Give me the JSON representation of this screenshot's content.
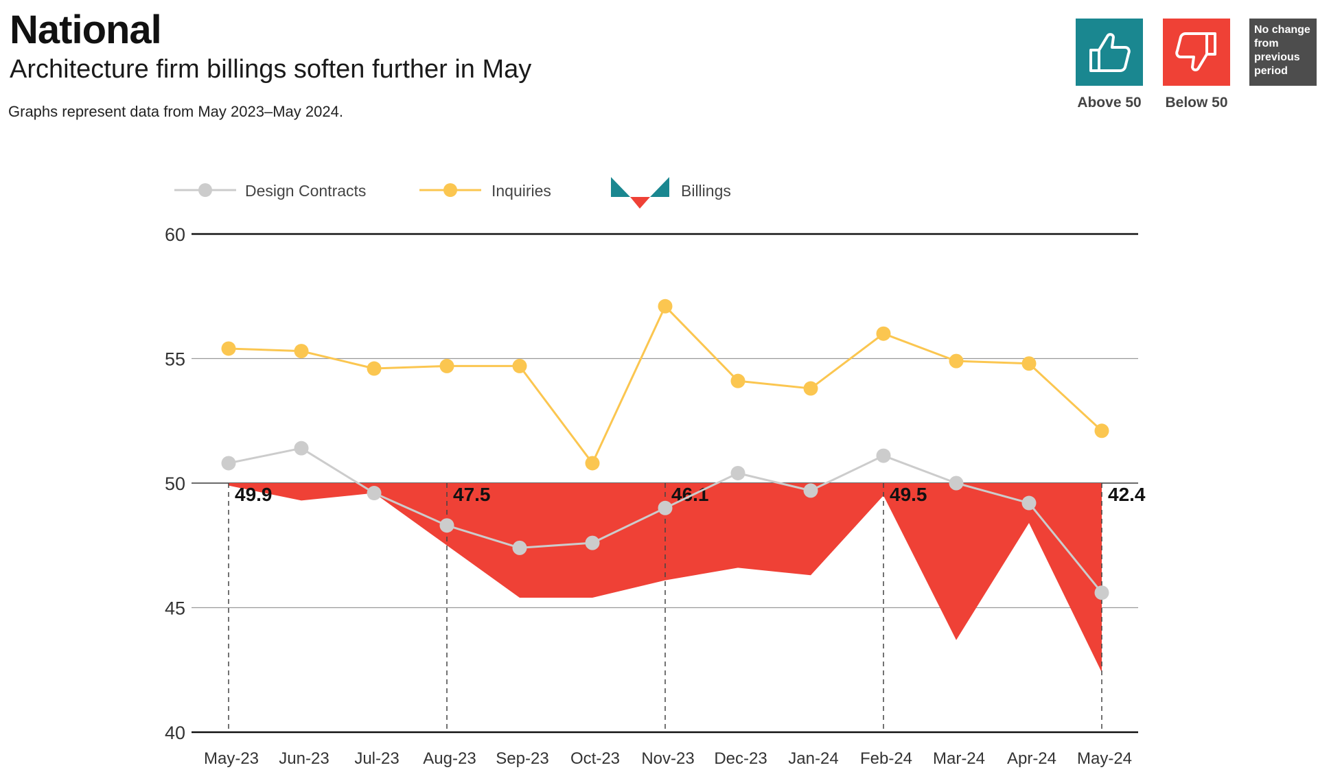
{
  "header": {
    "title": "National",
    "subtitle": "Architecture firm billings soften further in May",
    "note": "Graphs represent data from May 2023–May 2024."
  },
  "key": {
    "above": {
      "label": "Above 50",
      "icon": "thumbs-up-icon",
      "color": "#1a8790"
    },
    "below": {
      "label": "Below 50",
      "icon": "thumbs-down-icon",
      "color": "#ef4136"
    },
    "no_change": {
      "lines": [
        "No change",
        "from",
        "previous",
        "period"
      ],
      "color": "#4d4d4d"
    }
  },
  "chart_data": {
    "type": "line",
    "categories": [
      "May-23",
      "Jun-23",
      "Jul-23",
      "Aug-23",
      "Sep-23",
      "Oct-23",
      "Nov-23",
      "Dec-23",
      "Jan-24",
      "Feb-24",
      "Mar-24",
      "Apr-24",
      "May-24"
    ],
    "series": [
      {
        "name": "Design Contracts",
        "type": "line",
        "color": "#cccccc",
        "values": [
          50.8,
          51.4,
          49.6,
          48.3,
          47.4,
          47.6,
          49.0,
          50.4,
          49.7,
          51.1,
          50.0,
          49.2,
          45.6
        ]
      },
      {
        "name": "Inquiries",
        "type": "line",
        "color": "#fbc650",
        "values": [
          55.4,
          55.3,
          54.6,
          54.7,
          54.7,
          50.8,
          57.1,
          54.1,
          53.8,
          56.0,
          54.9,
          54.8,
          52.1
        ]
      },
      {
        "name": "Billings",
        "type": "area",
        "baseline": 50,
        "color_below": "#ef4136",
        "color_above": "#1a8790",
        "values": [
          49.9,
          49.3,
          49.6,
          47.5,
          45.4,
          45.4,
          46.1,
          46.6,
          46.3,
          49.5,
          43.7,
          48.4,
          42.4
        ]
      }
    ],
    "annotations": [
      {
        "category": "May-23",
        "label": "49.9"
      },
      {
        "category": "Aug-23",
        "label": "47.5"
      },
      {
        "category": "Nov-23",
        "label": "46.1"
      },
      {
        "category": "Feb-24",
        "label": "49.5"
      },
      {
        "category": "May-24",
        "label": "42.4"
      }
    ],
    "ylim": [
      40,
      60
    ],
    "yticks": [
      40,
      45,
      50,
      55,
      60
    ],
    "legend": "top-left",
    "xlabel": "",
    "ylabel": ""
  }
}
